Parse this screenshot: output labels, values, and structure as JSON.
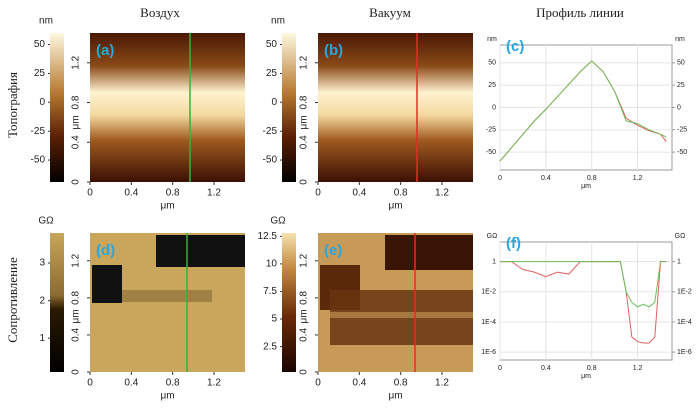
{
  "column_titles": [
    "Воздух",
    "Вакуум",
    "Профиль линии"
  ],
  "row_titles": [
    "Топография",
    "Сопротивление"
  ],
  "panels": [
    {
      "type": "map",
      "label": "(a)",
      "colorbar": {
        "unit": "nm",
        "lim": [
          -69,
          60
        ],
        "ticks": [
          50,
          25,
          0,
          -25,
          -50
        ]
      },
      "x_label": "μm",
      "y_label": "μm",
      "xlim": [
        0,
        1.5
      ],
      "ylim": [
        0,
        1.5
      ],
      "xticks": [
        0,
        0.4,
        0.8,
        1.2
      ],
      "yticks": [
        0,
        0.4,
        0.8,
        1.2
      ]
    },
    {
      "type": "map",
      "label": "(b)",
      "colorbar": {
        "unit": "nm",
        "lim": [
          -69,
          60
        ],
        "ticks": [
          50,
          25,
          0,
          -25,
          -50
        ]
      },
      "x_label": "μm",
      "y_label": "μm",
      "xlim": [
        0,
        1.5
      ],
      "ylim": [
        0,
        1.5
      ],
      "xticks": [
        0,
        0.4,
        0.8,
        1.2
      ],
      "yticks": [
        0,
        0.4,
        0.8,
        1.2
      ]
    },
    {
      "type": "line",
      "label": "(c)",
      "y_label": "nm",
      "y2_label": "nm",
      "x_label": "μm",
      "grid": true,
      "xlim": [
        0,
        1.5
      ],
      "ylim": [
        -70,
        70
      ],
      "xticks": [
        0,
        0.4,
        0.8,
        1.2
      ],
      "yticks": [
        50,
        25,
        0,
        -25,
        -50
      ],
      "y2ticks": [
        50,
        25,
        0,
        -25,
        -50
      ],
      "x": [
        0,
        0.1,
        0.2,
        0.3,
        0.4,
        0.5,
        0.6,
        0.7,
        0.8,
        0.9,
        1.0,
        1.1,
        1.2,
        1.3,
        1.4,
        1.45
      ],
      "series": [
        {
          "color": "#e06060",
          "values": [
            -60,
            -45,
            -30,
            -15,
            -2,
            12,
            26,
            40,
            52,
            40,
            18,
            -12,
            -20,
            -26,
            -30,
            -38
          ]
        },
        {
          "color": "#6cbf5a",
          "values": [
            -60,
            -45,
            -30,
            -15,
            -2,
            12,
            26,
            40,
            52,
            40,
            18,
            -15,
            -18,
            -25,
            -30,
            -33
          ]
        }
      ]
    },
    {
      "type": "map",
      "label": "(d)",
      "colorbar": {
        "unit": "GΩ",
        "lim": [
          0.1,
          3.8
        ],
        "ticks": [
          3,
          2,
          1
        ]
      },
      "x_label": "μm",
      "y_label": "μm",
      "xlim": [
        0,
        1.5
      ],
      "ylim": [
        0,
        1.5
      ],
      "xticks": [
        0,
        0.4,
        0.8,
        1.2
      ],
      "yticks": [
        0,
        0.4,
        0.8,
        1.2
      ]
    },
    {
      "type": "map",
      "label": "(e)",
      "colorbar": {
        "unit": "GΩ",
        "lim": [
          0.2,
          12.8
        ],
        "ticks": [
          12.5,
          10,
          7.5,
          5,
          2.5
        ]
      },
      "x_label": "μm",
      "y_label": "μm",
      "xlim": [
        0,
        1.5
      ],
      "ylim": [
        0,
        1.5
      ],
      "xticks": [
        0,
        0.4,
        0.8,
        1.2
      ],
      "yticks": [
        0,
        0.4,
        0.8,
        1.2
      ]
    },
    {
      "type": "line",
      "label": "(f)",
      "y_label": "GΩ",
      "y2_label": "GΩ",
      "x_label": "μm",
      "grid": true,
      "ylog": true,
      "xlim": [
        0,
        1.5
      ],
      "ylim": [
        3e-07,
        20
      ],
      "xticks": [
        0,
        0.4,
        0.8,
        1.2
      ],
      "yticks": [
        1,
        {
          "value": 0.01,
          "label": "1E-2"
        },
        {
          "value": 0.0001,
          "label": "1E-4"
        },
        {
          "value": 1e-06,
          "label": "1E-6"
        }
      ],
      "y2ticks": [
        1,
        {
          "value": 0.01,
          "label": "1E-2"
        },
        {
          "value": 0.0001,
          "label": "1E-4"
        },
        {
          "value": 1e-06,
          "label": "1E-6"
        }
      ],
      "x": [
        0,
        0.1,
        0.2,
        0.3,
        0.4,
        0.5,
        0.6,
        0.7,
        0.8,
        0.9,
        1.0,
        1.05,
        1.1,
        1.15,
        1.2,
        1.25,
        1.3,
        1.35,
        1.4,
        1.45
      ],
      "series": [
        {
          "color": "#e06060",
          "values": [
            1,
            1,
            0.3,
            0.2,
            0.1,
            0.2,
            0.15,
            1,
            1,
            1,
            1,
            1,
            0.01,
            1e-05,
            5e-06,
            4e-06,
            4e-06,
            1e-05,
            1,
            1
          ]
        },
        {
          "color": "#6cbf5a",
          "values": [
            1,
            1,
            1,
            1,
            1,
            1,
            1,
            1,
            1,
            1,
            1,
            1,
            0.01,
            0.002,
            0.001,
            0.0015,
            0.001,
            0.002,
            1,
            1
          ]
        }
      ]
    }
  ]
}
